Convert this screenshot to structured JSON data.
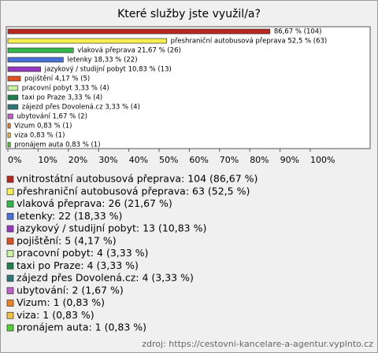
{
  "chart_data": {
    "type": "hbar",
    "title": "Které služby jste využil/a?",
    "categories": [
      "vnitrostátní autobusová přeprava",
      "přeshraniční autobusová přeprava",
      "vlaková přeprava",
      "letenky",
      "jazykový / studijní pobyt",
      "pojištění",
      "pracovní pobyt",
      "taxi po Praze",
      "zájezd přes Dovolená.cz",
      "ubytování",
      "Vizum",
      "viza",
      "pronájem auta"
    ],
    "values": [
      86.67,
      52.5,
      21.67,
      18.33,
      10.83,
      4.17,
      3.33,
      3.33,
      3.33,
      1.67,
      0.83,
      0.83,
      0.83
    ],
    "value_labels": [
      "86,67 % (104)",
      "přeshraniční autobusová přeprava 52,5 % (63)",
      "vlaková přeprava 21,67 % (26)",
      "letenky 18,33 % (22)",
      "jazykový / studijní pobyt 10,83 % (13)",
      "pojištění 4,17 % (5)",
      "pracovní pobyt 3,33 % (4)",
      "taxi po Praze 3,33 % (4)",
      "zájezd přes Dovolená.cz 3,33 % (4)",
      "ubytování 1,67 % (2)",
      "Vizum 0,83 % (1)",
      "viza 0,83 % (1)",
      "pronájem auta 0,83 % (1)"
    ],
    "legend_labels": [
      "vnitrostátní autobusová přeprava: 104 (86,67 %)",
      "přeshraniční autobusová přeprava: 63 (52,5 %)",
      "vlaková přeprava: 26 (21,67 %)",
      "letenky: 22 (18,33 %)",
      "jazykový / studijní pobyt: 13 (10,83 %)",
      "pojištění: 5 (4,17 %)",
      "pracovní pobyt: 4 (3,33 %)",
      "taxi po Praze: 4 (3,33 %)",
      "zájezd přes Dovolená.cz: 4 (3,33 %)",
      "ubytování: 2 (1,67 %)",
      "Vizum: 1 (0,83 %)",
      "viza: 1 (0,83 %)",
      "pronájem auta: 1 (0,83 %)"
    ],
    "colors": [
      "#b8281e",
      "#f8f050",
      "#30b848",
      "#4870d8",
      "#9838c0",
      "#e05020",
      "#c8f0a0",
      "#208050",
      "#307878",
      "#c060c8",
      "#f08020",
      "#f0c040",
      "#50d030"
    ],
    "xlim": [
      0,
      100
    ],
    "xticks": [
      {
        "value": 0,
        "label": "0%"
      },
      {
        "value": 10,
        "label": "10%"
      },
      {
        "value": 20,
        "label": "20%"
      },
      {
        "value": 30,
        "label": "30%"
      },
      {
        "value": 40,
        "label": "40%"
      },
      {
        "value": 50,
        "label": "50%"
      },
      {
        "value": 60,
        "label": "60%"
      },
      {
        "value": 70,
        "label": "70%"
      },
      {
        "value": 80,
        "label": "80%"
      },
      {
        "value": 90,
        "label": "90%"
      },
      {
        "value": 100,
        "label": "100%"
      }
    ],
    "source": "zdroj: https://cestovni-kancelare-a-agentur.vyplnto.cz"
  }
}
